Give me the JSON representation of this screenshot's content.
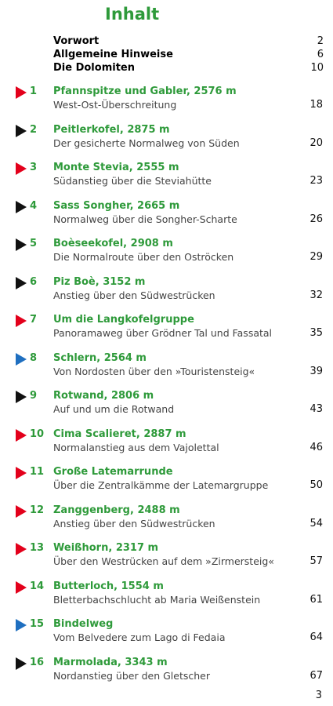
{
  "title": "Inhalt",
  "front": [
    {
      "label": "Vorwort",
      "page": "2"
    },
    {
      "label": "Allgemeine Hinweise",
      "page": "6"
    },
    {
      "label": "Die Dolomiten",
      "page": "10"
    }
  ],
  "tours": [
    {
      "num": "1",
      "marker": "red",
      "name": "Pfannspitze und Gabler, 2576 m",
      "sub": "West-Ost-Überschreitung",
      "page": "18"
    },
    {
      "num": "2",
      "marker": "black",
      "name": "Peitlerkofel, 2875 m",
      "sub": "Der gesicherte Normalweg von Süden",
      "page": "20"
    },
    {
      "num": "3",
      "marker": "red",
      "name": "Monte Stevia, 2555 m",
      "sub": "Südanstieg über die Steviahütte",
      "page": "23"
    },
    {
      "num": "4",
      "marker": "black",
      "name": "Sass Songher, 2665 m",
      "sub": "Normalweg über die Songher-Scharte",
      "page": "26"
    },
    {
      "num": "5",
      "marker": "black",
      "name": "Boèseekofel, 2908 m",
      "sub": "Die Normalroute über den Oströcken",
      "page": "29"
    },
    {
      "num": "6",
      "marker": "black",
      "name": "Piz Boè, 3152 m",
      "sub": "Anstieg über den Südwestrücken",
      "page": "32"
    },
    {
      "num": "7",
      "marker": "red",
      "name": "Um die Langkofelgruppe",
      "sub": "Panoramaweg über Grödner Tal und Fassatal",
      "page": "35"
    },
    {
      "num": "8",
      "marker": "blue",
      "name": "Schlern, 2564 m",
      "sub": "Von Nordosten über den »Touristensteig«",
      "page": "39"
    },
    {
      "num": "9",
      "marker": "black",
      "name": "Rotwand, 2806 m",
      "sub": "Auf und um die Rotwand",
      "page": "43"
    },
    {
      "num": "10",
      "marker": "red",
      "name": "Cima Scalieret, 2887 m",
      "sub": "Normalanstieg aus dem Vajolettal",
      "page": "46"
    },
    {
      "num": "11",
      "marker": "red",
      "name": "Große Latemarrunde",
      "sub": "Über die Zentralkämme der Latemargruppe",
      "page": "50"
    },
    {
      "num": "12",
      "marker": "red",
      "name": "Zanggenberg, 2488 m",
      "sub": "Anstieg über den Südwestrücken",
      "page": "54"
    },
    {
      "num": "13",
      "marker": "red",
      "name": "Weißhorn, 2317 m",
      "sub": "Über den Westrücken auf dem »Zirmersteig«",
      "page": "57"
    },
    {
      "num": "14",
      "marker": "red",
      "name": "Butterloch, 1554 m",
      "sub": "Bletterbachschlucht ab Maria Weißenstein",
      "page": "61"
    },
    {
      "num": "15",
      "marker": "blue",
      "name": "Bindelweg",
      "sub": "Vom Belvedere zum Lago di Fedaia",
      "page": "64"
    },
    {
      "num": "16",
      "marker": "black",
      "name": "Marmolada, 3343 m",
      "sub": "Nordanstieg über den Gletscher",
      "page": "67"
    }
  ],
  "page_number": "3",
  "colors": {
    "heading_green": "#2e9a3a",
    "marker_red": "#e3001b",
    "marker_black": "#111111",
    "marker_blue": "#1f6fc0"
  }
}
